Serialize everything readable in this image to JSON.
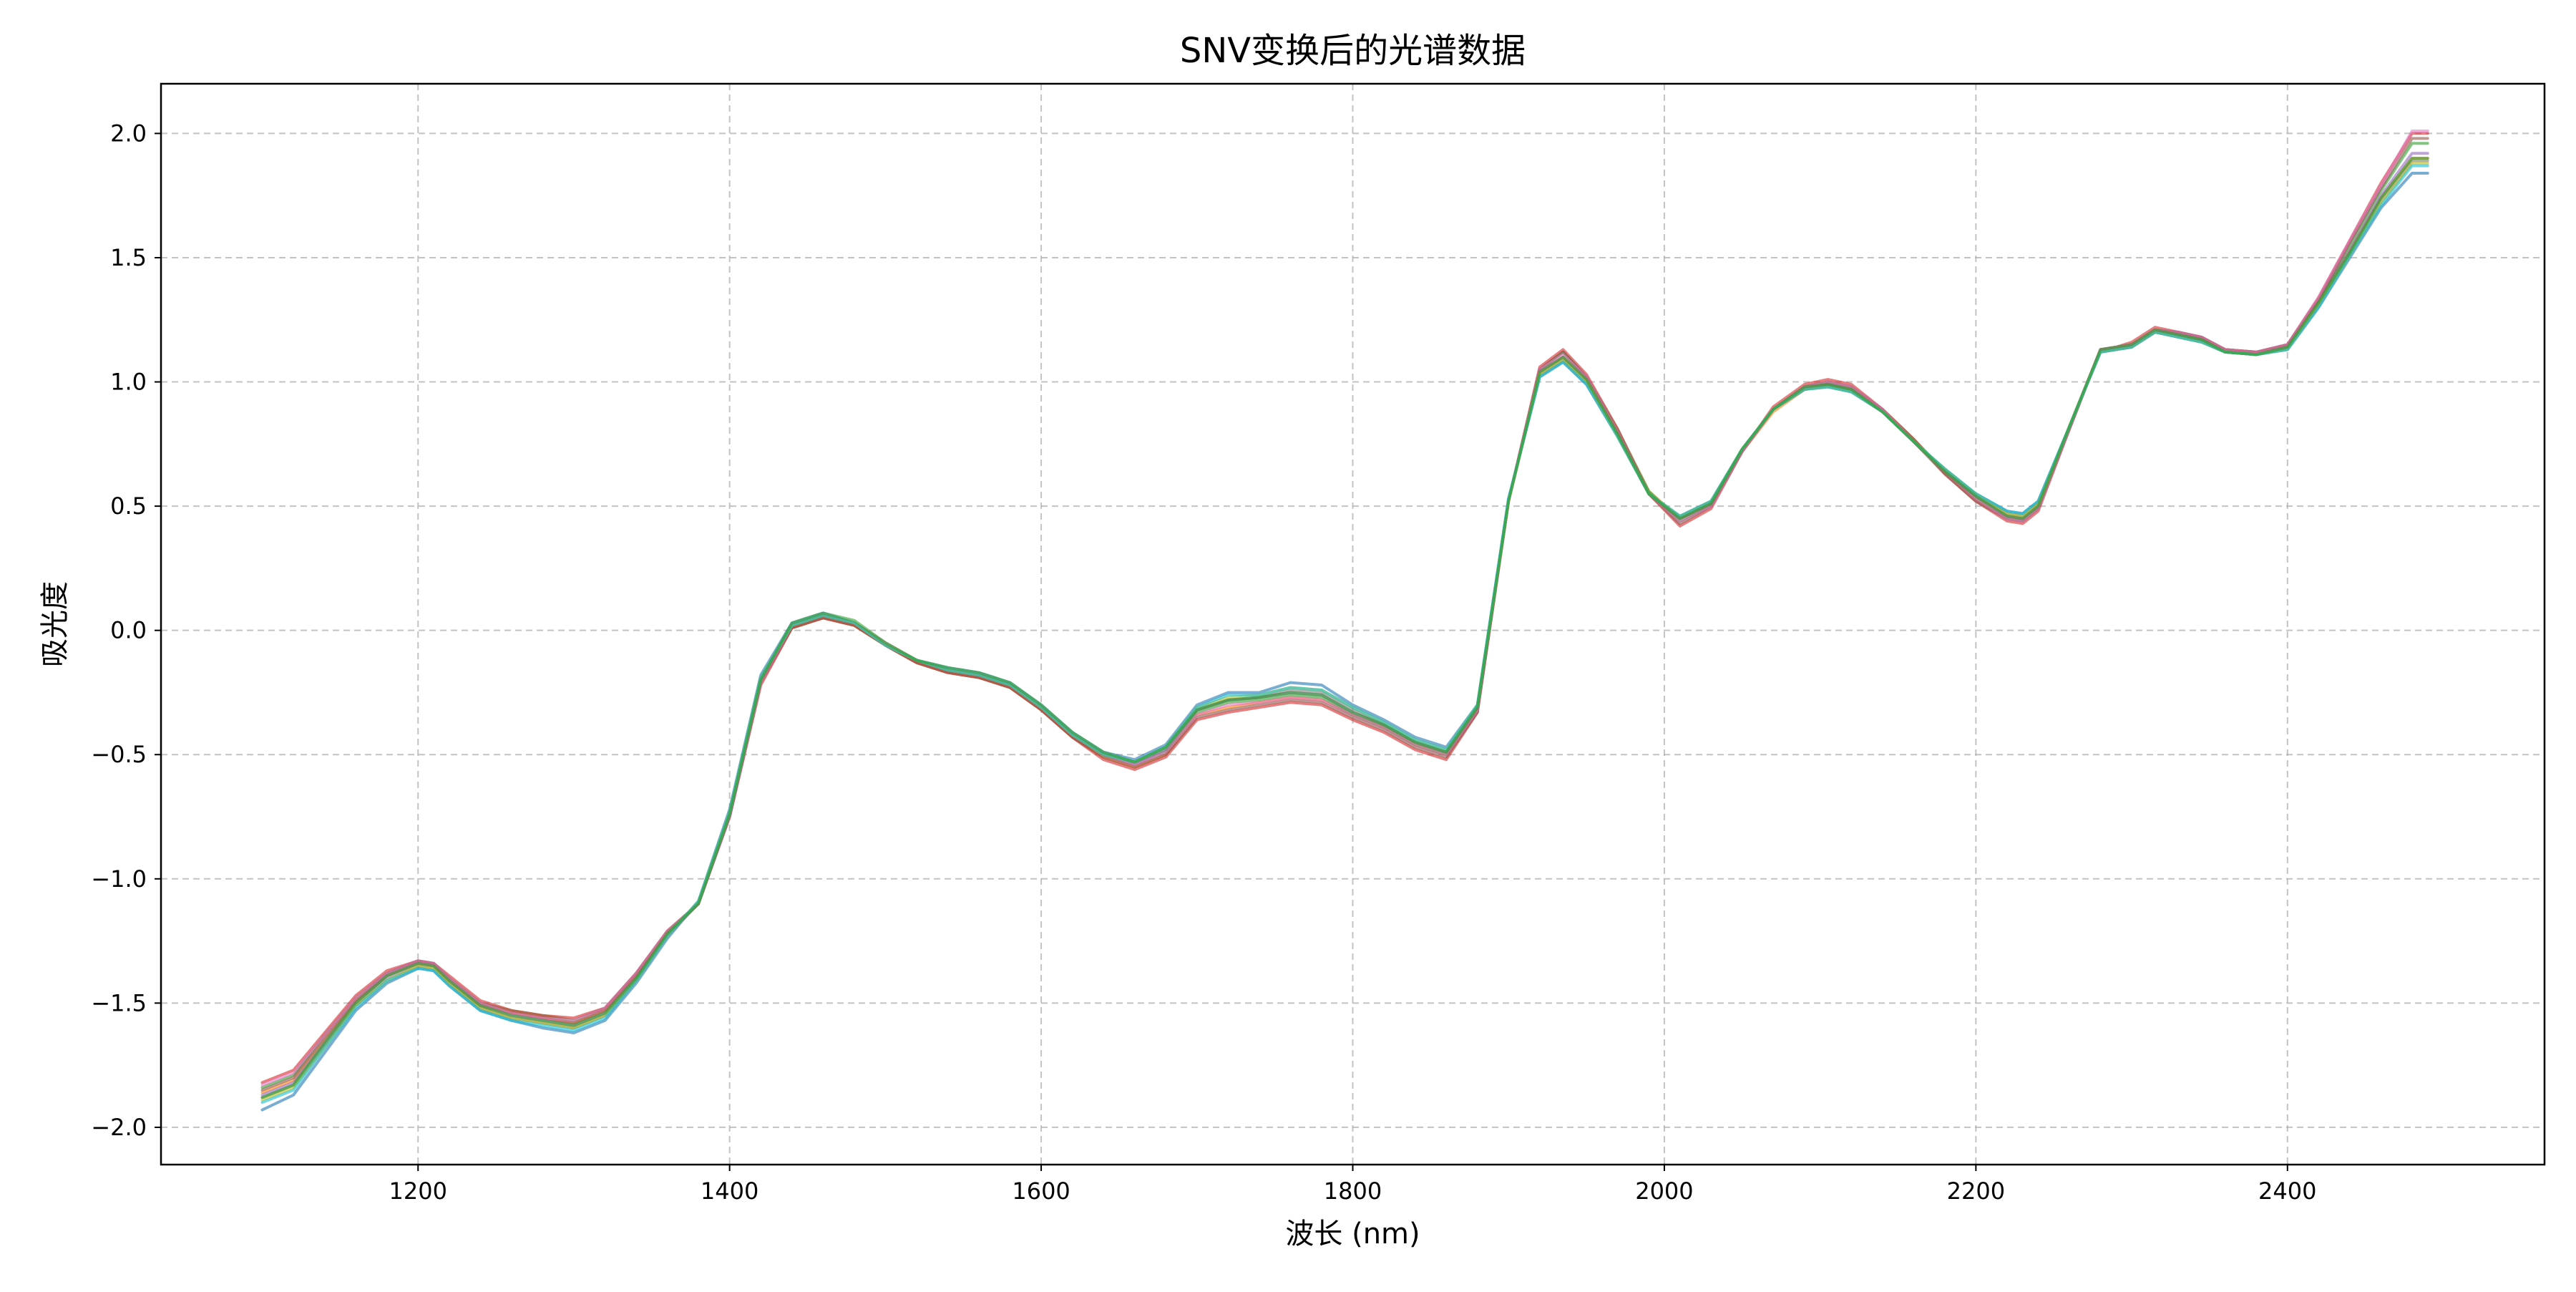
{
  "chart_data": {
    "type": "line",
    "title": "SNV变换后的光谱数据",
    "xlabel": "波长 (nm)",
    "ylabel": "吸光度",
    "xlim": [
      1035,
      2565
    ],
    "ylim": [
      -2.15,
      2.2
    ],
    "xticks": [
      1200,
      1400,
      1600,
      1800,
      2000,
      2200,
      2400
    ],
    "yticks": [
      -2.0,
      -1.5,
      -1.0,
      -0.5,
      0.0,
      0.5,
      1.0,
      1.5,
      2.0
    ],
    "xtick_labels": [
      "1200",
      "1400",
      "1600",
      "1800",
      "2000",
      "2200",
      "2400"
    ],
    "ytick_labels": [
      "−2.0",
      "−1.5",
      "−1.0",
      "−0.5",
      "0.0",
      "0.5",
      "1.0",
      "1.5",
      "2.0"
    ],
    "grid": true,
    "legend": "none",
    "x": [
      1100,
      1120,
      1140,
      1160,
      1180,
      1200,
      1210,
      1220,
      1240,
      1260,
      1280,
      1300,
      1320,
      1340,
      1360,
      1380,
      1400,
      1420,
      1440,
      1460,
      1480,
      1500,
      1520,
      1540,
      1560,
      1580,
      1600,
      1620,
      1640,
      1660,
      1680,
      1700,
      1720,
      1740,
      1760,
      1780,
      1800,
      1820,
      1840,
      1860,
      1880,
      1900,
      1920,
      1935,
      1950,
      1970,
      1990,
      2010,
      2030,
      2050,
      2070,
      2090,
      2105,
      2120,
      2140,
      2160,
      2180,
      2200,
      2220,
      2230,
      2240,
      2260,
      2280,
      2290,
      2300,
      2315,
      2330,
      2345,
      2360,
      2380,
      2400,
      2420,
      2440,
      2460,
      2480,
      2490
    ],
    "series": [
      {
        "color": "#1f77b4",
        "values": [
          -1.93,
          -1.87,
          -1.7,
          -1.53,
          -1.42,
          -1.36,
          -1.37,
          -1.43,
          -1.53,
          -1.57,
          -1.6,
          -1.62,
          -1.57,
          -1.42,
          -1.24,
          -1.09,
          -0.72,
          -0.18,
          0.03,
          0.07,
          0.03,
          -0.06,
          -0.12,
          -0.15,
          -0.17,
          -0.21,
          -0.3,
          -0.41,
          -0.49,
          -0.52,
          -0.46,
          -0.3,
          -0.25,
          -0.25,
          -0.21,
          -0.22,
          -0.3,
          -0.36,
          -0.43,
          -0.47,
          -0.3,
          0.53,
          1.02,
          1.08,
          0.99,
          0.78,
          0.55,
          0.46,
          0.52,
          0.73,
          0.89,
          0.97,
          0.98,
          0.96,
          0.88,
          0.76,
          0.65,
          0.55,
          0.48,
          0.47,
          0.52,
          0.82,
          1.12,
          1.13,
          1.14,
          1.2,
          1.18,
          1.16,
          1.12,
          1.11,
          1.13,
          1.3,
          1.5,
          1.7,
          1.84,
          1.84
        ]
      },
      {
        "color": "#ff7f0e",
        "values": [
          -1.86,
          -1.81,
          -1.65,
          -1.49,
          -1.39,
          -1.34,
          -1.35,
          -1.41,
          -1.51,
          -1.54,
          -1.56,
          -1.58,
          -1.53,
          -1.39,
          -1.22,
          -1.1,
          -0.74,
          -0.21,
          0.01,
          0.05,
          0.02,
          -0.06,
          -0.13,
          -0.17,
          -0.19,
          -0.23,
          -0.32,
          -0.43,
          -0.51,
          -0.55,
          -0.5,
          -0.34,
          -0.31,
          -0.29,
          -0.27,
          -0.28,
          -0.34,
          -0.39,
          -0.46,
          -0.5,
          -0.32,
          0.52,
          1.04,
          1.1,
          1.01,
          0.8,
          0.56,
          0.45,
          0.51,
          0.72,
          0.88,
          0.97,
          0.99,
          0.97,
          0.88,
          0.76,
          0.64,
          0.53,
          0.46,
          0.45,
          0.5,
          0.82,
          1.13,
          1.14,
          1.15,
          1.21,
          1.19,
          1.17,
          1.13,
          1.12,
          1.14,
          1.32,
          1.53,
          1.74,
          1.9,
          1.9
        ]
      },
      {
        "color": "#2ca02c",
        "values": [
          -1.84,
          -1.79,
          -1.63,
          -1.48,
          -1.38,
          -1.33,
          -1.34,
          -1.4,
          -1.5,
          -1.53,
          -1.55,
          -1.57,
          -1.52,
          -1.38,
          -1.21,
          -1.1,
          -0.75,
          -0.21,
          0.02,
          0.06,
          0.03,
          -0.05,
          -0.12,
          -0.16,
          -0.18,
          -0.22,
          -0.31,
          -0.42,
          -0.5,
          -0.54,
          -0.49,
          -0.33,
          -0.29,
          -0.28,
          -0.26,
          -0.27,
          -0.34,
          -0.39,
          -0.46,
          -0.5,
          -0.32,
          0.52,
          1.05,
          1.12,
          1.02,
          0.81,
          0.56,
          0.44,
          0.5,
          0.72,
          0.89,
          0.98,
          1.0,
          0.98,
          0.89,
          0.77,
          0.64,
          0.53,
          0.45,
          0.44,
          0.49,
          0.81,
          1.13,
          1.14,
          1.15,
          1.21,
          1.2,
          1.18,
          1.13,
          1.12,
          1.15,
          1.33,
          1.55,
          1.77,
          1.96,
          1.96
        ]
      },
      {
        "color": "#d62728",
        "values": [
          -1.82,
          -1.77,
          -1.62,
          -1.47,
          -1.37,
          -1.33,
          -1.34,
          -1.39,
          -1.49,
          -1.53,
          -1.55,
          -1.56,
          -1.52,
          -1.38,
          -1.21,
          -1.1,
          -0.75,
          -0.22,
          0.01,
          0.05,
          0.02,
          -0.06,
          -0.13,
          -0.17,
          -0.19,
          -0.23,
          -0.32,
          -0.43,
          -0.52,
          -0.56,
          -0.51,
          -0.36,
          -0.33,
          -0.31,
          -0.29,
          -0.3,
          -0.36,
          -0.41,
          -0.48,
          -0.52,
          -0.33,
          0.52,
          1.06,
          1.13,
          1.03,
          0.81,
          0.55,
          0.42,
          0.49,
          0.72,
          0.9,
          0.99,
          1.01,
          0.99,
          0.89,
          0.77,
          0.63,
          0.52,
          0.44,
          0.43,
          0.48,
          0.81,
          1.13,
          1.14,
          1.16,
          1.22,
          1.2,
          1.18,
          1.13,
          1.12,
          1.15,
          1.34,
          1.57,
          1.8,
          2.0,
          2.0
        ]
      },
      {
        "color": "#9467bd",
        "values": [
          -1.87,
          -1.82,
          -1.66,
          -1.5,
          -1.39,
          -1.34,
          -1.35,
          -1.41,
          -1.51,
          -1.55,
          -1.57,
          -1.59,
          -1.54,
          -1.4,
          -1.22,
          -1.1,
          -0.74,
          -0.2,
          0.02,
          0.06,
          0.03,
          -0.06,
          -0.12,
          -0.16,
          -0.18,
          -0.22,
          -0.31,
          -0.42,
          -0.5,
          -0.54,
          -0.48,
          -0.32,
          -0.28,
          -0.27,
          -0.25,
          -0.26,
          -0.33,
          -0.38,
          -0.45,
          -0.49,
          -0.31,
          0.52,
          1.04,
          1.1,
          1.01,
          0.79,
          0.55,
          0.45,
          0.51,
          0.73,
          0.89,
          0.98,
          0.99,
          0.97,
          0.88,
          0.76,
          0.64,
          0.54,
          0.46,
          0.45,
          0.5,
          0.82,
          1.13,
          1.14,
          1.15,
          1.21,
          1.19,
          1.17,
          1.12,
          1.11,
          1.14,
          1.32,
          1.53,
          1.75,
          1.92,
          1.92
        ]
      },
      {
        "color": "#8c564b",
        "values": [
          -1.85,
          -1.8,
          -1.64,
          -1.49,
          -1.38,
          -1.33,
          -1.34,
          -1.4,
          -1.5,
          -1.54,
          -1.56,
          -1.58,
          -1.53,
          -1.39,
          -1.22,
          -1.1,
          -0.75,
          -0.21,
          0.01,
          0.05,
          0.02,
          -0.06,
          -0.13,
          -0.17,
          -0.19,
          -0.23,
          -0.32,
          -0.43,
          -0.51,
          -0.55,
          -0.5,
          -0.35,
          -0.32,
          -0.3,
          -0.28,
          -0.29,
          -0.35,
          -0.4,
          -0.47,
          -0.51,
          -0.33,
          0.52,
          1.05,
          1.12,
          1.02,
          0.8,
          0.55,
          0.43,
          0.5,
          0.72,
          0.89,
          0.98,
          1.0,
          0.98,
          0.89,
          0.76,
          0.63,
          0.52,
          0.45,
          0.44,
          0.49,
          0.81,
          1.13,
          1.14,
          1.15,
          1.21,
          1.2,
          1.18,
          1.13,
          1.12,
          1.15,
          1.33,
          1.56,
          1.78,
          1.98,
          1.98
        ]
      },
      {
        "color": "#e377c2",
        "values": [
          -1.83,
          -1.78,
          -1.63,
          -1.48,
          -1.38,
          -1.33,
          -1.34,
          -1.4,
          -1.5,
          -1.54,
          -1.56,
          -1.57,
          -1.52,
          -1.38,
          -1.21,
          -1.1,
          -0.75,
          -0.21,
          0.02,
          0.06,
          0.03,
          -0.05,
          -0.12,
          -0.16,
          -0.18,
          -0.22,
          -0.31,
          -0.42,
          -0.5,
          -0.54,
          -0.49,
          -0.34,
          -0.3,
          -0.29,
          -0.27,
          -0.28,
          -0.34,
          -0.39,
          -0.46,
          -0.5,
          -0.32,
          0.52,
          1.05,
          1.11,
          1.02,
          0.8,
          0.55,
          0.44,
          0.5,
          0.72,
          0.89,
          0.98,
          1.0,
          0.98,
          0.89,
          0.76,
          0.64,
          0.53,
          0.45,
          0.44,
          0.49,
          0.81,
          1.13,
          1.14,
          1.15,
          1.21,
          1.2,
          1.18,
          1.13,
          1.12,
          1.15,
          1.34,
          1.57,
          1.79,
          2.01,
          2.01
        ]
      },
      {
        "color": "#7f7f7f",
        "values": [
          -1.88,
          -1.83,
          -1.67,
          -1.51,
          -1.4,
          -1.35,
          -1.36,
          -1.42,
          -1.52,
          -1.56,
          -1.58,
          -1.6,
          -1.55,
          -1.41,
          -1.23,
          -1.1,
          -0.74,
          -0.19,
          0.02,
          0.06,
          0.03,
          -0.06,
          -0.12,
          -0.16,
          -0.18,
          -0.22,
          -0.31,
          -0.42,
          -0.5,
          -0.53,
          -0.48,
          -0.32,
          -0.28,
          -0.27,
          -0.24,
          -0.25,
          -0.32,
          -0.38,
          -0.45,
          -0.49,
          -0.31,
          0.52,
          1.03,
          1.09,
          1.0,
          0.79,
          0.55,
          0.45,
          0.51,
          0.73,
          0.89,
          0.97,
          0.99,
          0.97,
          0.88,
          0.76,
          0.64,
          0.54,
          0.47,
          0.46,
          0.51,
          0.82,
          1.12,
          1.13,
          1.14,
          1.2,
          1.19,
          1.17,
          1.12,
          1.11,
          1.14,
          1.31,
          1.52,
          1.73,
          1.89,
          1.89
        ]
      },
      {
        "color": "#bcbd22",
        "values": [
          -1.89,
          -1.84,
          -1.68,
          -1.51,
          -1.41,
          -1.35,
          -1.36,
          -1.42,
          -1.52,
          -1.56,
          -1.58,
          -1.6,
          -1.55,
          -1.41,
          -1.23,
          -1.09,
          -0.73,
          -0.19,
          0.02,
          0.06,
          0.03,
          -0.06,
          -0.12,
          -0.16,
          -0.18,
          -0.22,
          -0.31,
          -0.42,
          -0.5,
          -0.53,
          -0.47,
          -0.31,
          -0.27,
          -0.26,
          -0.23,
          -0.24,
          -0.31,
          -0.37,
          -0.44,
          -0.48,
          -0.3,
          0.52,
          1.03,
          1.09,
          1.0,
          0.78,
          0.55,
          0.46,
          0.52,
          0.73,
          0.89,
          0.97,
          0.98,
          0.96,
          0.88,
          0.76,
          0.65,
          0.55,
          0.47,
          0.46,
          0.51,
          0.82,
          1.12,
          1.13,
          1.14,
          1.2,
          1.18,
          1.16,
          1.12,
          1.11,
          1.13,
          1.31,
          1.51,
          1.72,
          1.88,
          1.88
        ]
      },
      {
        "color": "#17becf",
        "values": [
          -1.9,
          -1.85,
          -1.68,
          -1.52,
          -1.41,
          -1.36,
          -1.37,
          -1.43,
          -1.53,
          -1.57,
          -1.59,
          -1.61,
          -1.56,
          -1.41,
          -1.23,
          -1.09,
          -0.73,
          -0.19,
          0.02,
          0.06,
          0.03,
          -0.06,
          -0.12,
          -0.16,
          -0.18,
          -0.22,
          -0.31,
          -0.42,
          -0.5,
          -0.53,
          -0.47,
          -0.31,
          -0.26,
          -0.26,
          -0.23,
          -0.24,
          -0.31,
          -0.37,
          -0.44,
          -0.48,
          -0.3,
          0.53,
          1.02,
          1.08,
          0.99,
          0.78,
          0.55,
          0.46,
          0.52,
          0.73,
          0.89,
          0.97,
          0.98,
          0.96,
          0.88,
          0.76,
          0.65,
          0.55,
          0.48,
          0.47,
          0.52,
          0.82,
          1.12,
          1.13,
          1.14,
          1.2,
          1.18,
          1.16,
          1.12,
          1.11,
          1.13,
          1.3,
          1.51,
          1.71,
          1.87,
          1.87
        ]
      },
      {
        "color": "#2ca02c",
        "values": [
          -1.88,
          -1.83,
          -1.66,
          -1.5,
          -1.39,
          -1.34,
          -1.35,
          -1.41,
          -1.51,
          -1.55,
          -1.57,
          -1.59,
          -1.54,
          -1.4,
          -1.22,
          -1.1,
          -0.74,
          -0.2,
          0.03,
          0.07,
          0.04,
          -0.05,
          -0.12,
          -0.15,
          -0.17,
          -0.21,
          -0.3,
          -0.41,
          -0.49,
          -0.53,
          -0.47,
          -0.32,
          -0.28,
          -0.27,
          -0.25,
          -0.26,
          -0.33,
          -0.38,
          -0.45,
          -0.49,
          -0.31,
          0.52,
          1.04,
          1.1,
          1.01,
          0.79,
          0.55,
          0.45,
          0.51,
          0.73,
          0.89,
          0.98,
          0.99,
          0.97,
          0.88,
          0.76,
          0.64,
          0.54,
          0.46,
          0.45,
          0.5,
          0.82,
          1.13,
          1.14,
          1.15,
          1.21,
          1.19,
          1.17,
          1.12,
          1.11,
          1.14,
          1.32,
          1.52,
          1.74,
          1.9,
          1.9
        ]
      }
    ]
  }
}
